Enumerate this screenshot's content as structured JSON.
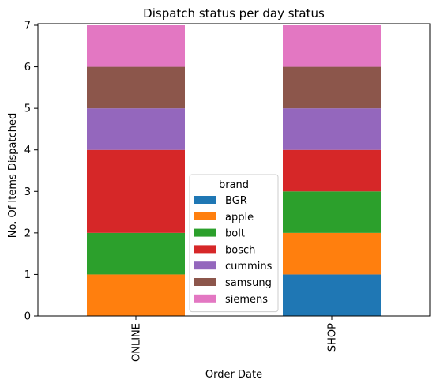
{
  "chart_data": {
    "type": "bar",
    "stacked": true,
    "title": "Dispatch status per day status",
    "xlabel": "Order Date",
    "ylabel": "No. Of Items Dispatched",
    "categories": [
      "ONLINE",
      "SHOP"
    ],
    "ylim": [
      0,
      7
    ],
    "yticks": [
      "0",
      "1",
      "2",
      "3",
      "4",
      "5",
      "6",
      "7"
    ],
    "grid": false,
    "legend": {
      "title": "brand",
      "placement": "lower-center"
    },
    "series": [
      {
        "name": "BGR",
        "color": "#1f77b4",
        "values": [
          0,
          1
        ]
      },
      {
        "name": "apple",
        "color": "#ff7f0e",
        "values": [
          1,
          1
        ]
      },
      {
        "name": "bolt",
        "color": "#2ca02c",
        "values": [
          1,
          1
        ]
      },
      {
        "name": "bosch",
        "color": "#d62728",
        "values": [
          2,
          1
        ]
      },
      {
        "name": "cummins",
        "color": "#9467bd",
        "values": [
          1,
          1
        ]
      },
      {
        "name": "samsung",
        "color": "#8c564b",
        "values": [
          1,
          1
        ]
      },
      {
        "name": "siemens",
        "color": "#e377c2",
        "values": [
          1,
          1
        ]
      }
    ]
  }
}
